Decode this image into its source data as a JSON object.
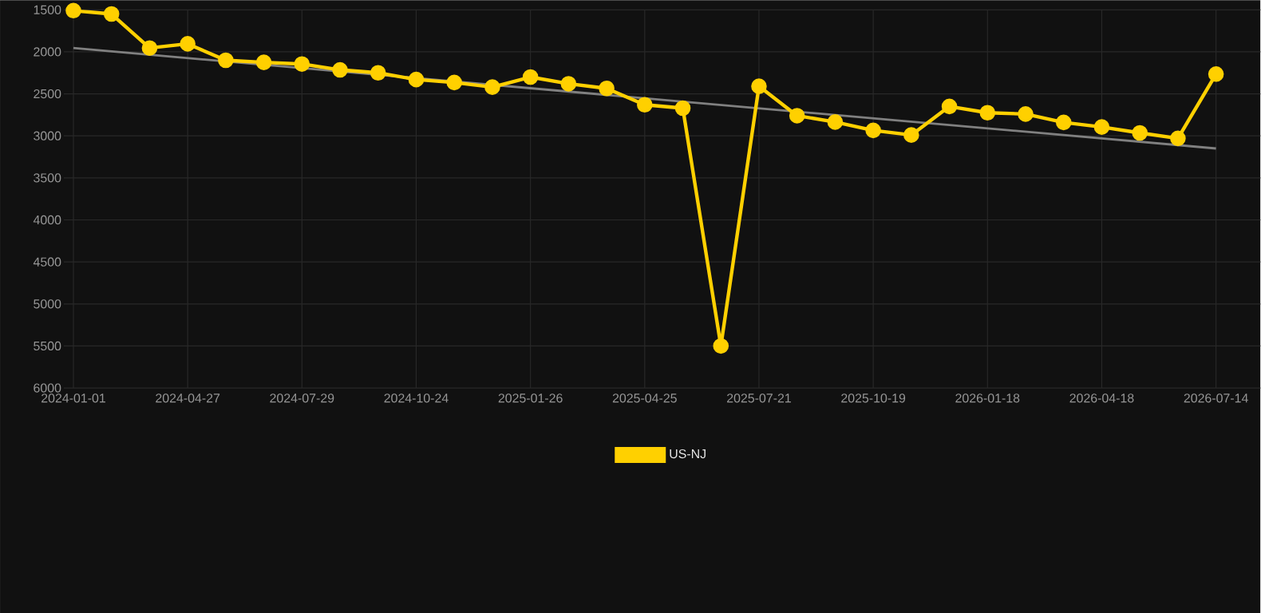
{
  "chart_data": {
    "type": "line",
    "categories": [
      "2024-01-01",
      null,
      null,
      "2024-04-27",
      null,
      null,
      "2024-07-29",
      null,
      null,
      "2024-10-24",
      null,
      null,
      "2025-01-26",
      null,
      null,
      "2025-04-25",
      null,
      null,
      "2025-07-21",
      null,
      null,
      "2025-10-19",
      null,
      null,
      "2026-01-18",
      null,
      null,
      "2026-04-18",
      null,
      null,
      "2026-07-14"
    ],
    "series": [
      {
        "name": "US-NJ",
        "color": "#ffd000",
        "values": [
          1510,
          1550,
          1955,
          1905,
          2100,
          2125,
          2145,
          2215,
          2250,
          2330,
          2365,
          2420,
          2300,
          2380,
          2435,
          2630,
          2670,
          5500,
          2410,
          2760,
          2835,
          2935,
          2990,
          2650,
          2725,
          2740,
          2840,
          2895,
          2965,
          3030,
          2265
        ]
      },
      {
        "type": "line",
        "color": "#808080",
        "marker": "none",
        "values": [
          1955,
          null,
          null,
          null,
          null,
          null,
          null,
          null,
          null,
          null,
          null,
          null,
          null,
          null,
          null,
          null,
          null,
          null,
          null,
          null,
          null,
          null,
          null,
          null,
          null,
          null,
          null,
          null,
          null,
          null,
          3150
        ]
      }
    ],
    "ylim": [
      6000,
      1500
    ],
    "yticks": [
      1500,
      2000,
      2500,
      3000,
      3500,
      4000,
      4500,
      5000,
      5500,
      6000
    ],
    "grid": true,
    "legend": "bottom",
    "marker": "circle",
    "line_style": "solid"
  }
}
